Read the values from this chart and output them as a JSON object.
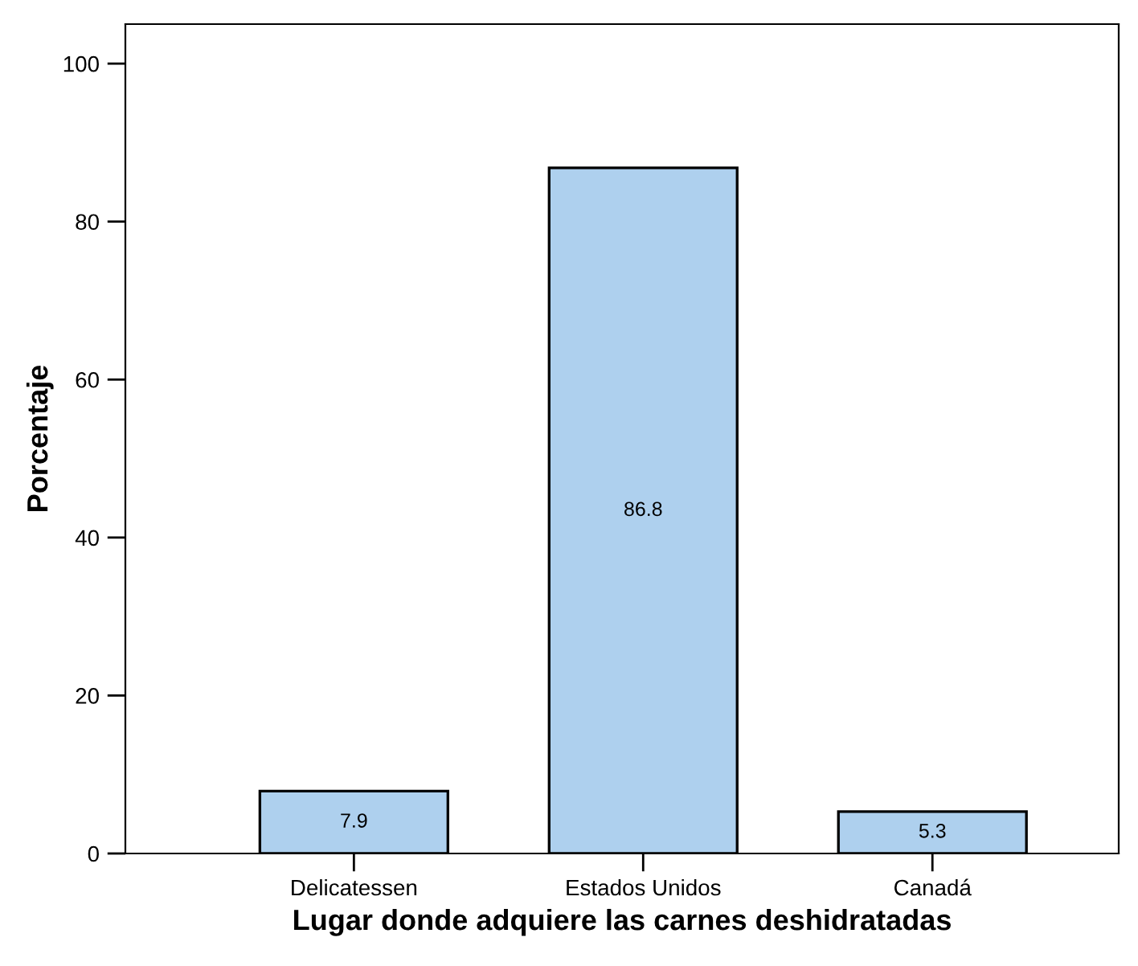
{
  "chart_data": {
    "type": "bar",
    "xlabel": "Lugar donde adquiere las carnes deshidratadas",
    "ylabel": "Porcentaje",
    "categories": [
      "Delicatessen",
      "Estados Unidos",
      "Canadá"
    ],
    "values": [
      7.9,
      86.8,
      5.3
    ],
    "color": "#aed0ee",
    "data_labels": true,
    "ylim": [
      0,
      105
    ],
    "yticks": [
      0,
      20,
      40,
      60,
      80,
      100
    ],
    "grid": false,
    "legend": false
  }
}
